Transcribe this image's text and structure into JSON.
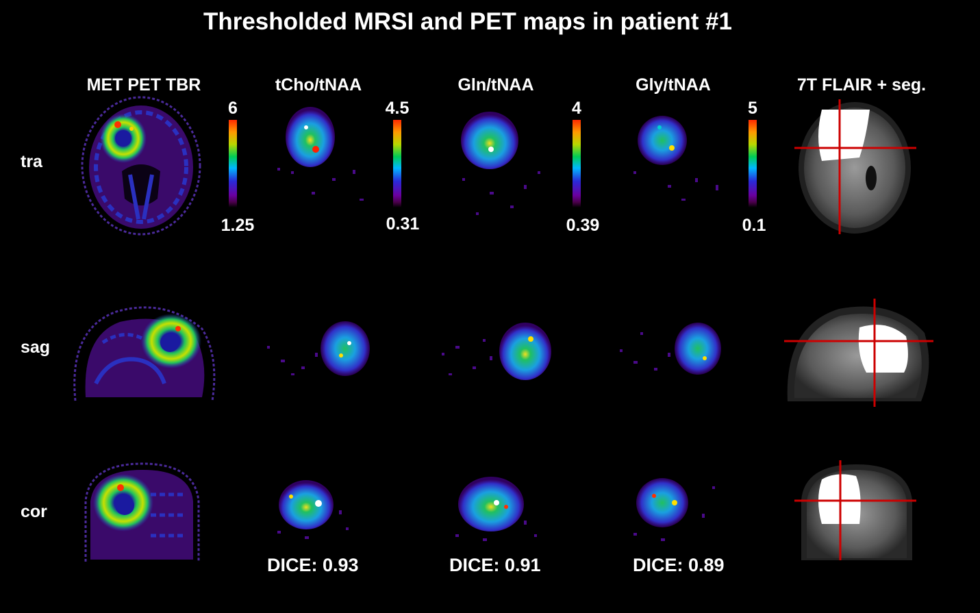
{
  "title": "Thresholded MRSI and PET maps in patient #1",
  "columns": [
    "MET PET TBR",
    "tCho/tNAA",
    "Gln/tNAA",
    "Gly/tNAA",
    "7T FLAIR + seg."
  ],
  "rows": [
    "tra",
    "sag",
    "cor"
  ],
  "colorbars": [
    {
      "max": "6",
      "min": "1.25"
    },
    {
      "max": "4.5",
      "min": "0.31"
    },
    {
      "max": "4",
      "min": "0.39"
    },
    {
      "max": "5",
      "min": "0.1"
    }
  ],
  "dice": [
    "DICE: 0.93",
    "DICE: 0.91",
    "DICE: 0.89"
  ],
  "colors": {
    "background": "#000000",
    "crosshair": "#cc0000",
    "segmentation": "#ffffff"
  }
}
